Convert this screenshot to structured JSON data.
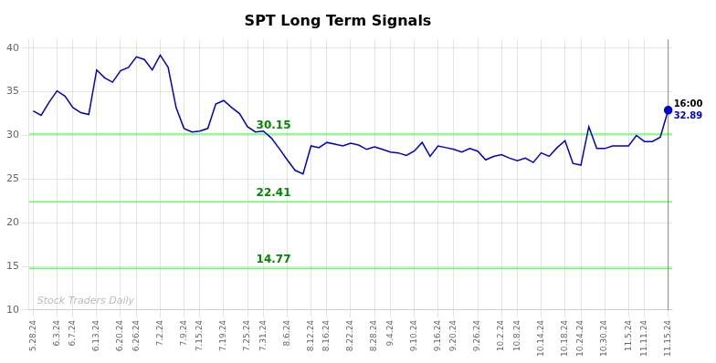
{
  "chart_data": {
    "type": "line",
    "title": "SPT Long Term Signals",
    "categories": [
      "5.28.24",
      null,
      null,
      "6.3.24",
      null,
      "6.7.24",
      null,
      null,
      "6.13.24",
      null,
      null,
      "6.20.24",
      null,
      "6.26.24",
      null,
      null,
      "7.2.24",
      null,
      null,
      "7.9.24",
      null,
      "7.15.24",
      null,
      null,
      "7.19.24",
      null,
      null,
      "7.25.24",
      null,
      "7.31.24",
      null,
      null,
      "8.6.24",
      null,
      null,
      "8.12.24",
      null,
      "8.16.24",
      null,
      null,
      "8.22.24",
      null,
      null,
      "8.28.24",
      null,
      "9.4.24",
      null,
      null,
      "9.10.24",
      null,
      null,
      "9.16.24",
      null,
      "9.20.24",
      null,
      null,
      "9.26.24",
      null,
      null,
      "10.2.24",
      null,
      "10.8.24",
      null,
      null,
      "10.14.24",
      null,
      null,
      "10.18.24",
      null,
      "10.24.24",
      null,
      null,
      "10.30.24",
      null,
      null,
      "11.5.24",
      null,
      "11.11.24",
      null,
      null,
      "11.15.24"
    ],
    "values": [
      32.8,
      32.3,
      33.8,
      35.1,
      34.5,
      33.2,
      32.6,
      32.4,
      37.5,
      36.6,
      36.1,
      37.4,
      37.8,
      39.0,
      38.7,
      37.5,
      39.2,
      37.8,
      33.2,
      30.8,
      30.4,
      30.5,
      30.8,
      33.6,
      34.0,
      33.2,
      32.5,
      31.0,
      30.4,
      30.5,
      29.7,
      28.5,
      27.2,
      26.0,
      25.6,
      28.8,
      28.6,
      29.2,
      29.0,
      28.8,
      29.1,
      28.9,
      28.4,
      28.7,
      28.4,
      28.1,
      28.0,
      27.7,
      28.2,
      29.2,
      27.6,
      28.8,
      28.6,
      28.4,
      28.1,
      28.5,
      28.2,
      27.2,
      27.6,
      27.8,
      27.4,
      27.1,
      27.4,
      26.9,
      28.0,
      27.6,
      28.6,
      29.4,
      26.8,
      26.6,
      31.0,
      28.5,
      28.5,
      28.8,
      28.8,
      28.8,
      30.0,
      29.3,
      29.3,
      29.8,
      32.89
    ],
    "color": "#0000cc",
    "ylim": [
      10,
      41
    ],
    "yticks": [
      10,
      15,
      20,
      25,
      30,
      35,
      40
    ],
    "grid": true,
    "annotations": [
      {
        "type": "hline",
        "y": 30.15,
        "label": "30.15",
        "color": "#66ff66",
        "label_color": "#008800"
      },
      {
        "type": "hline",
        "y": 22.41,
        "label": "22.41",
        "color": "#66ff66",
        "label_color": "#008800"
      },
      {
        "type": "hline",
        "y": 14.77,
        "label": "14.77",
        "color": "#66ff66",
        "label_color": "#008800"
      },
      {
        "type": "vline",
        "x": 80,
        "color": "#888888"
      },
      {
        "type": "text",
        "text": "Stock Traders Daily",
        "x": 0.5,
        "y": 10.4,
        "color": "#bbbbbb"
      },
      {
        "type": "last_label",
        "text": "16:00",
        "color": "#000000"
      },
      {
        "type": "last_label",
        "text": "32.89",
        "color": "#0000cc"
      }
    ]
  }
}
